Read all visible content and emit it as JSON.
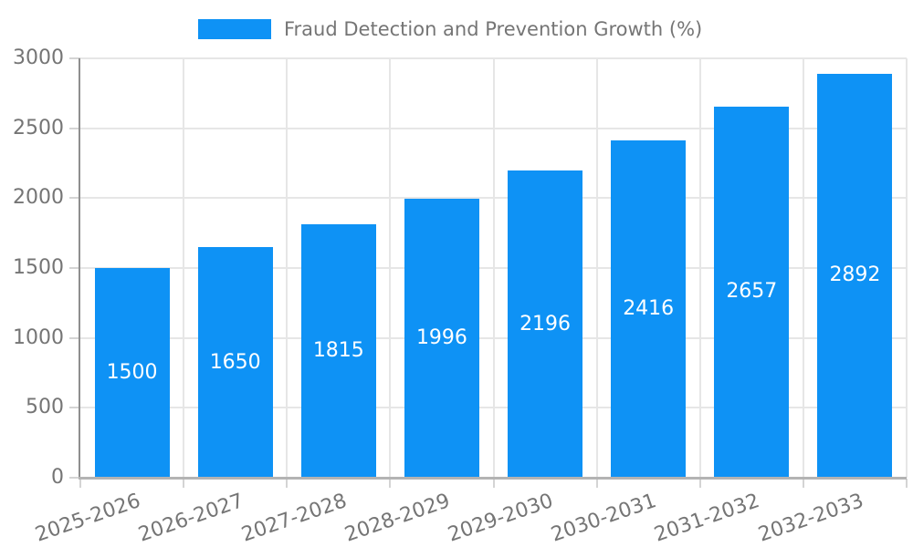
{
  "legend": {
    "label": "Fraud Detection and Prevention Growth (%)"
  },
  "chart_data": {
    "type": "bar",
    "title": "Fraud Detection and Prevention Growth (%)",
    "categories": [
      "2025-2026",
      "2026-2027",
      "2027-2028",
      "2028-2029",
      "2029-2030",
      "2030-2031",
      "2031-2032",
      "2032-2033"
    ],
    "values": [
      1500,
      1650,
      1815,
      1996,
      2196,
      2416,
      2657,
      2892
    ],
    "xlabel": "",
    "ylabel": "",
    "ylim": [
      0,
      3000
    ],
    "yticks": [
      0,
      500,
      1000,
      1500,
      2000,
      2500,
      3000
    ],
    "grid": true,
    "legend_position": "top-center",
    "value_label_position": "inside-middle",
    "colors": {
      "bar": "#0e92f5",
      "value_label": "#ffffff",
      "axis_text": "#757575",
      "gridline": "#e6e6e6",
      "tick": "#d4d4d4",
      "y_axis_line": "#8f8f8f",
      "x_axis_line": "#b3b3b3",
      "background": "#ffffff"
    }
  }
}
